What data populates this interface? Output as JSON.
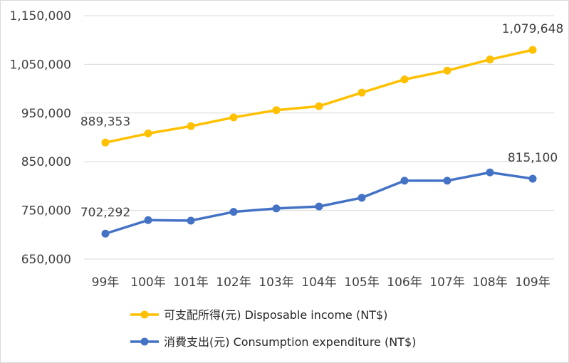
{
  "chart_data": {
    "type": "line",
    "categories": [
      "99年",
      "100年",
      "101年",
      "102年",
      "103年",
      "104年",
      "105年",
      "106年",
      "107年",
      "108年",
      "109年"
    ],
    "series": [
      {
        "name": "可支配所得(元) Disposable income (NT$)",
        "color": "#FFC000",
        "values": [
          889353,
          908000,
          923000,
          941000,
          956000,
          964000,
          992000,
          1019000,
          1037000,
          1060000,
          1079648
        ]
      },
      {
        "name": "消費支出(元) Consumption expenditure (NT$)",
        "color": "#4472C4",
        "values": [
          702292,
          730000,
          729000,
          747000,
          754000,
          758000,
          776000,
          811000,
          811000,
          828000,
          815100
        ]
      }
    ],
    "data_labels": [
      {
        "series": 0,
        "index": 0,
        "text": "889,353"
      },
      {
        "series": 0,
        "index": 10,
        "text": "1,079,648"
      },
      {
        "series": 1,
        "index": 0,
        "text": "702,292"
      },
      {
        "series": 1,
        "index": 10,
        "text": "815,100"
      }
    ],
    "y_ticks": [
      "650,000",
      "750,000",
      "850,000",
      "950,000",
      "1,050,000",
      "1,150,000"
    ],
    "y_tick_values": [
      650000,
      750000,
      850000,
      950000,
      1050000,
      1150000
    ],
    "ylim": [
      650000,
      1150000
    ],
    "grid": true,
    "legend_position": "bottom",
    "title": "",
    "xlabel": "",
    "ylabel": ""
  }
}
